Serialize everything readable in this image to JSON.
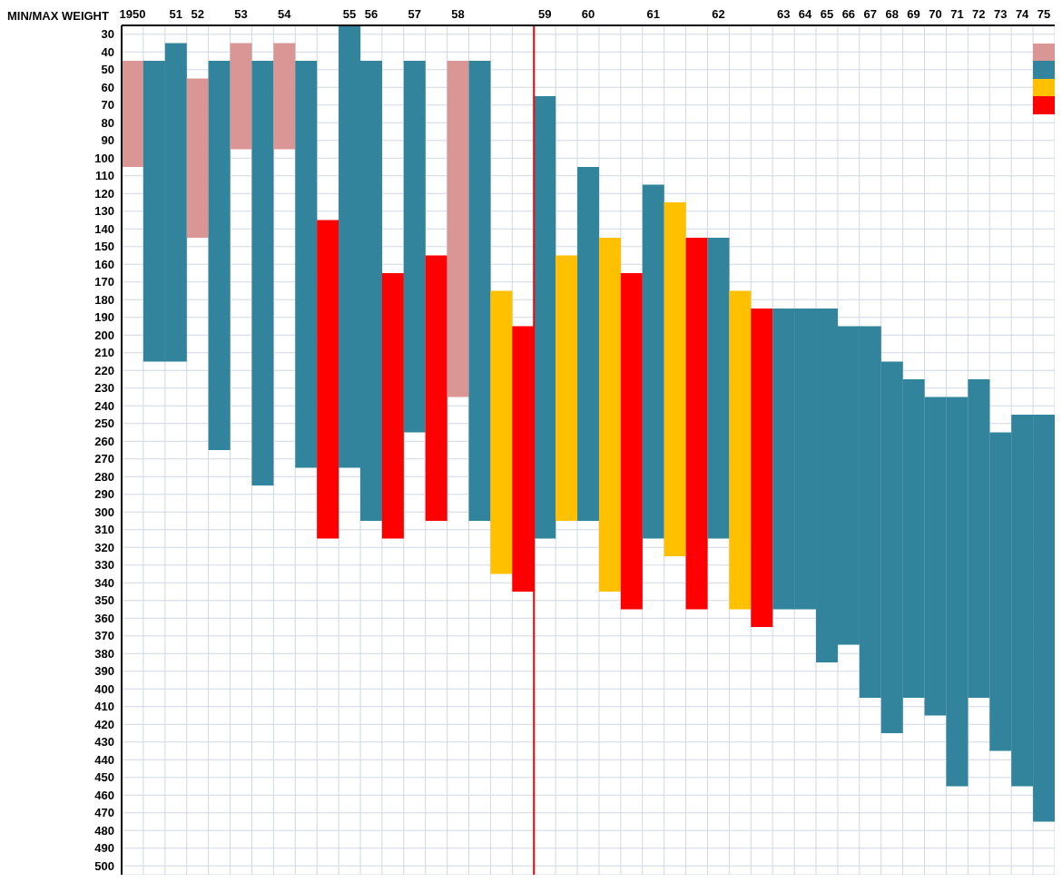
{
  "chart_data": {
    "type": "bar",
    "ylabel": "MIN/MAX WEIGHT",
    "categories": [
      "1950",
      null,
      "51",
      "52",
      null,
      "53",
      null,
      "54",
      null,
      null,
      "55",
      "56",
      null,
      "57",
      null,
      "58",
      null,
      null,
      null,
      "59",
      null,
      "60",
      null,
      null,
      "61",
      null,
      null,
      "62",
      null,
      null,
      "63",
      "64",
      "65",
      "66",
      "67",
      "68",
      "69",
      "70",
      "71",
      "72",
      "73",
      "74",
      "75"
    ],
    "series": [
      {
        "color": "#d99694",
        "values": [
          60,
          null,
          null,
          90,
          null,
          60,
          null,
          60,
          null,
          null,
          null,
          null,
          null,
          null,
          null,
          190,
          null,
          null,
          null,
          null,
          null,
          null,
          null,
          null,
          null,
          null,
          null,
          null,
          null,
          null,
          null,
          null,
          null,
          null,
          null,
          null,
          null,
          null,
          null,
          null,
          null,
          null,
          null
        ],
        "base": [
          45,
          null,
          null,
          55,
          null,
          35,
          null,
          35,
          null,
          null,
          null,
          null,
          null,
          null,
          null,
          45,
          null,
          null,
          null,
          null,
          null,
          null,
          null,
          null,
          null,
          null,
          null,
          null,
          null,
          null,
          null,
          null,
          null,
          null,
          null,
          null,
          null,
          null,
          null,
          null,
          null,
          null,
          null
        ]
      },
      {
        "color": "#31849b",
        "values": [
          null,
          170,
          180,
          null,
          220,
          null,
          240,
          null,
          230,
          null,
          250,
          260,
          null,
          210,
          null,
          null,
          260,
          null,
          null,
          250,
          null,
          200,
          null,
          null,
          200,
          null,
          null,
          170,
          null,
          null,
          170,
          170,
          200,
          180,
          210,
          210,
          180,
          180,
          220,
          180,
          180,
          210,
          230
        ],
        "base": [
          null,
          45,
          35,
          null,
          45,
          null,
          45,
          null,
          45,
          null,
          25,
          45,
          null,
          45,
          null,
          null,
          45,
          null,
          null,
          65,
          null,
          105,
          null,
          null,
          115,
          null,
          null,
          145,
          null,
          null,
          185,
          185,
          185,
          195,
          195,
          215,
          225,
          235,
          235,
          225,
          255,
          245,
          245
        ]
      },
      {
        "color": "#ffc000",
        "values": [
          null,
          null,
          null,
          null,
          null,
          null,
          null,
          null,
          null,
          null,
          null,
          null,
          null,
          null,
          null,
          null,
          null,
          160,
          null,
          null,
          150,
          null,
          200,
          null,
          null,
          200,
          null,
          null,
          180,
          null,
          null,
          null,
          null,
          null,
          null,
          null,
          null,
          null,
          null,
          null,
          null,
          null,
          null
        ],
        "base": [
          null,
          null,
          null,
          null,
          null,
          null,
          null,
          null,
          null,
          null,
          null,
          null,
          null,
          null,
          null,
          null,
          null,
          175,
          null,
          null,
          155,
          null,
          145,
          null,
          null,
          125,
          null,
          null,
          175,
          null,
          null,
          null,
          null,
          null,
          null,
          null,
          null,
          null,
          null,
          null,
          null,
          null,
          null
        ]
      },
      {
        "color": "#ff0000",
        "values": [
          null,
          null,
          null,
          null,
          null,
          null,
          null,
          null,
          null,
          180,
          null,
          null,
          150,
          null,
          150,
          null,
          null,
          null,
          150,
          null,
          null,
          null,
          null,
          190,
          null,
          null,
          210,
          null,
          null,
          180,
          null,
          null,
          null,
          null,
          null,
          null,
          null,
          null,
          null,
          null,
          null,
          null,
          null
        ],
        "base": [
          null,
          null,
          null,
          null,
          null,
          null,
          null,
          null,
          null,
          135,
          null,
          null,
          165,
          null,
          155,
          null,
          null,
          null,
          195,
          null,
          null,
          null,
          null,
          165,
          null,
          null,
          145,
          null,
          null,
          185,
          null,
          null,
          null,
          null,
          null,
          null,
          null,
          null,
          null,
          null,
          null,
          null,
          null
        ]
      }
    ],
    "ylim": [
      505,
      25
    ],
    "yticks": [
      30,
      40,
      50,
      60,
      70,
      80,
      90,
      100,
      110,
      120,
      130,
      140,
      150,
      160,
      170,
      180,
      190,
      200,
      210,
      220,
      230,
      240,
      250,
      260,
      270,
      280,
      290,
      300,
      310,
      320,
      330,
      340,
      350,
      360,
      370,
      380,
      390,
      400,
      410,
      420,
      430,
      440,
      450,
      460,
      470,
      480,
      490,
      500
    ],
    "ref_lines": [
      {
        "axis": "x",
        "value": "59",
        "color": "#ff0000"
      }
    ],
    "grid": true
  }
}
